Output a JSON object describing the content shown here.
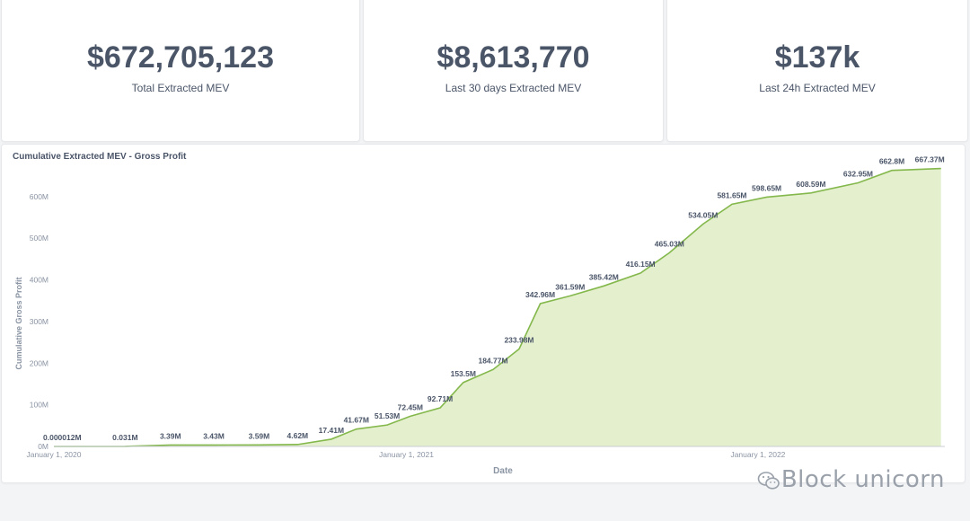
{
  "kpis": [
    {
      "value": "$672,705,123",
      "label": "Total Extracted MEV"
    },
    {
      "value": "$8,613,770",
      "label": "Last 30 days Extracted MEV"
    },
    {
      "value": "$137k",
      "label": "Last 24h Extracted MEV"
    }
  ],
  "watermark": "Block unicorn",
  "colors": {
    "line": "#84b84c",
    "fill": "#e3efcd",
    "text": "#4a5568",
    "axis": "#8a94a3"
  },
  "chart_data": {
    "type": "area",
    "title": "Cumulative Extracted MEV - Gross Profit",
    "xlabel": "Date",
    "ylabel": "Cumulative Gross Profit",
    "ylim": [
      0,
      660
    ],
    "yticks": [
      {
        "value": 0,
        "label": "0M"
      },
      {
        "value": 100,
        "label": "100M"
      },
      {
        "value": 200,
        "label": "200M"
      },
      {
        "value": 300,
        "label": "300M"
      },
      {
        "value": 400,
        "label": "400M"
      },
      {
        "value": 500,
        "label": "500M"
      },
      {
        "value": 600,
        "label": "600M"
      }
    ],
    "xticks": [
      {
        "value": "2020-01-01",
        "label": "January 1, 2020"
      },
      {
        "value": "2021-01-01",
        "label": "January 1, 2021"
      },
      {
        "value": "2022-01-01",
        "label": "January 1, 2022"
      }
    ],
    "xlim": [
      "2020-01-01",
      "2022-07-14"
    ],
    "grid": false,
    "series": [
      {
        "points": [
          [
            "2020-01-01",
            1.2e-05
          ],
          [
            "2020-03-15",
            0.031
          ],
          [
            "2020-05-01",
            3.39
          ],
          [
            "2020-06-15",
            3.43
          ],
          [
            "2020-08-01",
            3.59
          ],
          [
            "2020-09-10",
            4.62
          ],
          [
            "2020-10-15",
            17.41
          ],
          [
            "2020-11-10",
            41.67
          ],
          [
            "2020-12-12",
            51.53
          ],
          [
            "2021-01-05",
            72.45
          ],
          [
            "2021-02-05",
            92.71
          ],
          [
            "2021-03-01",
            153.5
          ],
          [
            "2021-04-01",
            184.77
          ],
          [
            "2021-04-28",
            233.98
          ],
          [
            "2021-05-20",
            342.96
          ],
          [
            "2021-06-20",
            361.59
          ],
          [
            "2021-07-25",
            385.42
          ],
          [
            "2021-09-01",
            416.15
          ],
          [
            "2021-10-01",
            465.03
          ],
          [
            "2021-11-05",
            534.05
          ],
          [
            "2021-12-05",
            581.65
          ],
          [
            "2022-01-10",
            598.65
          ],
          [
            "2022-02-25",
            608.59
          ],
          [
            "2022-04-15",
            632.95
          ],
          [
            "2022-05-20",
            662.8
          ],
          [
            "2022-07-10",
            667.37
          ]
        ],
        "labels": [
          "0.000012M",
          "0.031M",
          "3.39M",
          "3.43M",
          "3.59M",
          "4.62M",
          "17.41M",
          "41.67M",
          "51.53M",
          "72.45M",
          "92.71M",
          "153.5M",
          "184.77M",
          "233.98M",
          "342.96M",
          "361.59M",
          "385.42M",
          "416.15M",
          "465.03M",
          "534.05M",
          "581.65M",
          "598.65M",
          "608.59M",
          "632.95M",
          "662.8M",
          "667.37M"
        ]
      }
    ]
  }
}
